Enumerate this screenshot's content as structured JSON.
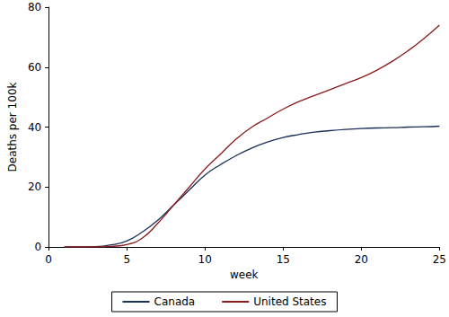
{
  "chart_data": {
    "type": "line",
    "x_label": "week",
    "y_label": "Deaths per 100k",
    "x": [
      1,
      2,
      3,
      4,
      5,
      6,
      7,
      8,
      9,
      10,
      11,
      12,
      13,
      14,
      15,
      16,
      17,
      18,
      19,
      20,
      21,
      22,
      23,
      24,
      25
    ],
    "series": [
      {
        "name": "Canada",
        "color": "#1a2f5a",
        "values": [
          0,
          0,
          0.1,
          0.7,
          2,
          5,
          9,
          14,
          19,
          24,
          27.5,
          30.5,
          33,
          35,
          36.5,
          37.5,
          38.3,
          38.8,
          39.2,
          39.5,
          39.7,
          39.8,
          40,
          40.1,
          40.3
        ]
      },
      {
        "name": "United States",
        "color": "#8b1a1a",
        "values": [
          0,
          0,
          0,
          0.2,
          0.8,
          3,
          8,
          14,
          20,
          26,
          31,
          36,
          40,
          43,
          46,
          48.5,
          50.5,
          52.5,
          54.5,
          56.5,
          59,
          62,
          65.5,
          69.5,
          74
        ]
      }
    ],
    "xlim": [
      0,
      25
    ],
    "xticks": [
      0,
      5,
      10,
      15,
      20,
      25
    ],
    "ylim": [
      0,
      80
    ],
    "yticks": [
      0,
      20,
      40,
      60,
      80
    ],
    "grid": false,
    "legend": "bottom"
  }
}
